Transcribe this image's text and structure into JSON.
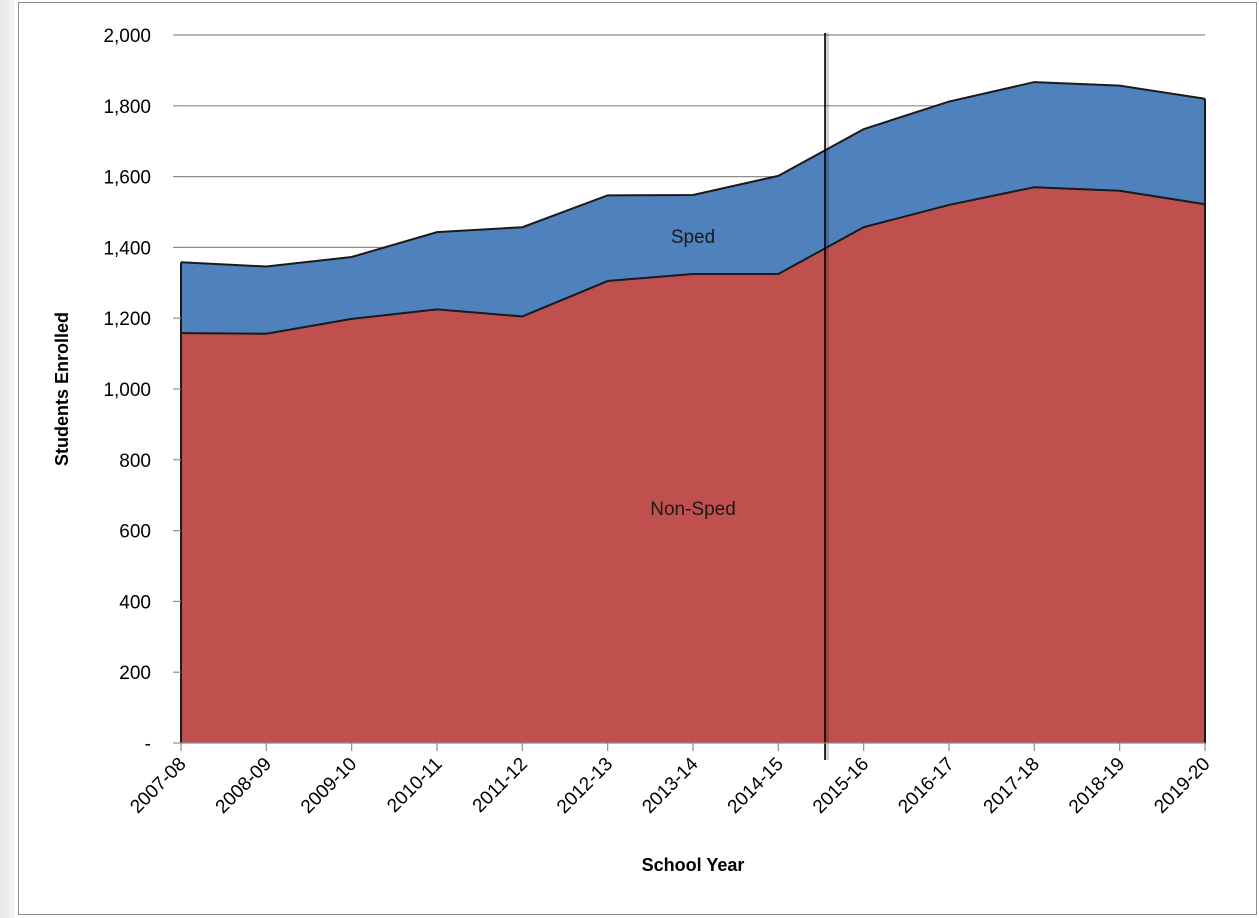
{
  "chart_data": {
    "type": "area",
    "stacked": true,
    "categories": [
      "2007-08",
      "2008-09",
      "2009-10",
      "2010-11",
      "2011-12",
      "2012-13",
      "2013-14",
      "2014-15",
      "2015-16",
      "2016-17",
      "2017-18",
      "2018-19",
      "2019-20"
    ],
    "series": [
      {
        "name": "Non-Sped",
        "color": "#c0504d",
        "values": [
          1158,
          1156,
          1198,
          1225,
          1205,
          1305,
          1325,
          1325,
          1457,
          1520,
          1570,
          1560,
          1522
        ]
      },
      {
        "name": "Sped",
        "color": "#4f81bd",
        "values": [
          200,
          190,
          175,
          218,
          252,
          242,
          223,
          277,
          277,
          292,
          297,
          297,
          298
        ]
      }
    ],
    "xlabel": "School Year",
    "ylabel": "Students Enrolled",
    "ylim": [
      0,
      2000
    ],
    "ytick_step": 200,
    "ytick_labels": [
      "-",
      "200",
      "400",
      "600",
      "800",
      "1,000",
      "1,200",
      "1,400",
      "1,600",
      "1,800",
      "2,000"
    ],
    "grid": true,
    "legend": "none",
    "divider_between": [
      "2014-15",
      "2015-16"
    ]
  }
}
